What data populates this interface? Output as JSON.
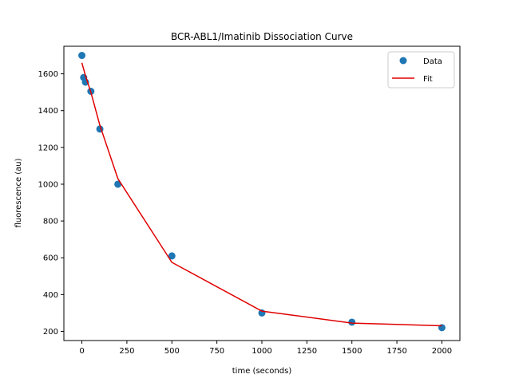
{
  "chart_data": {
    "type": "scatter",
    "title": "BCR-ABL1/Imatinib Dissociation Curve",
    "xlabel": "time (seconds)",
    "ylabel": "fluorescence (au)",
    "xlim": [
      -100,
      2100
    ],
    "ylim": [
      150,
      1750
    ],
    "xticks": [
      0,
      250,
      500,
      750,
      1000,
      1250,
      1500,
      1750,
      2000
    ],
    "yticks": [
      200,
      400,
      600,
      800,
      1000,
      1200,
      1400,
      1600
    ],
    "grid": false,
    "legend_position": "top-right",
    "series": [
      {
        "name": "Data",
        "kind": "points",
        "color": "#1f77b4",
        "x": [
          0,
          10,
          20,
          50,
          100,
          200,
          500,
          1000,
          1500,
          2000
        ],
        "y": [
          1700,
          1580,
          1555,
          1505,
          1300,
          1000,
          610,
          300,
          250,
          220
        ]
      },
      {
        "name": "Fit",
        "kind": "line",
        "color": "#e00000",
        "x": [
          0,
          10,
          20,
          50,
          100,
          200,
          500,
          1000,
          1500,
          2000
        ],
        "y": [
          1660,
          1625,
          1590,
          1500,
          1320,
          1030,
          575,
          310,
          245,
          230
        ]
      }
    ]
  }
}
